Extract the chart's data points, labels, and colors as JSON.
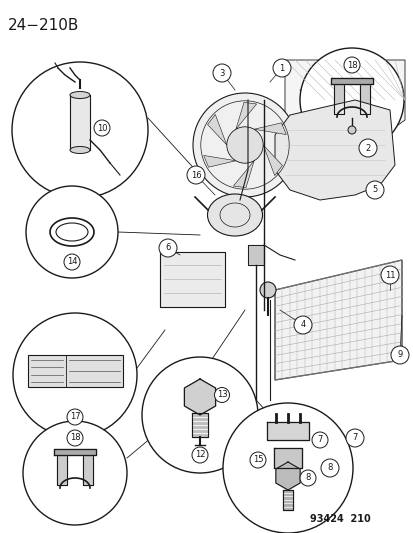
{
  "title": "24−210B",
  "part_number": "93424  210",
  "bg": "#ffffff",
  "lc": "#1a1a1a",
  "figsize": [
    4.14,
    5.33
  ],
  "dpi": 100,
  "title_fs": 11,
  "pn_fs": 7
}
